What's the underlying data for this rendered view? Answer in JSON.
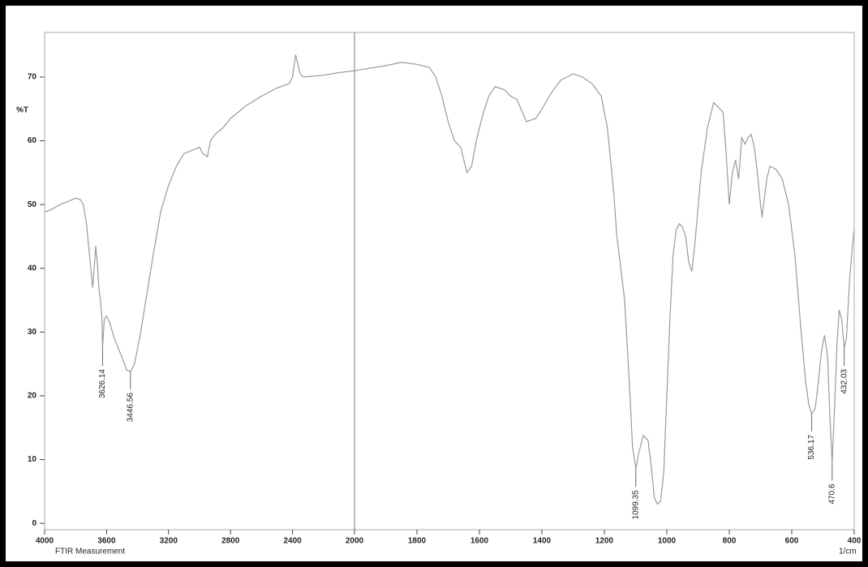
{
  "chart_data": {
    "type": "line",
    "y_label": "%T",
    "x_unit": "1/cm",
    "footer": "FTIR Measurement",
    "xlim": [
      4000,
      400
    ],
    "xticks": [
      4000,
      3600,
      3200,
      2800,
      2400,
      2000,
      1800,
      1600,
      1400,
      1200,
      1000,
      800,
      600,
      400
    ],
    "ylim": [
      -1,
      77
    ],
    "yticks": [
      0,
      10,
      20,
      30,
      40,
      50,
      60,
      70
    ],
    "vline": 2000,
    "color": "#9a9a9a",
    "series": [
      {
        "x": [
          4000,
          3950,
          3900,
          3850,
          3800,
          3770,
          3750,
          3730,
          3710,
          3690,
          3680,
          3670,
          3660,
          3650,
          3640,
          3630,
          3626,
          3615,
          3600,
          3580,
          3550,
          3500,
          3470,
          3446,
          3420,
          3380,
          3340,
          3300,
          3250,
          3200,
          3150,
          3100,
          3050,
          3000,
          2980,
          2950,
          2930,
          2900,
          2850,
          2800,
          2700,
          2600,
          2500,
          2420,
          2400,
          2380,
          2365,
          2350,
          2330,
          2200,
          2100,
          2000,
          1900,
          1850,
          1800,
          1760,
          1740,
          1720,
          1700,
          1680,
          1660,
          1640,
          1625,
          1610,
          1590,
          1570,
          1550,
          1520,
          1500,
          1480,
          1450,
          1420,
          1400,
          1370,
          1340,
          1300,
          1270,
          1240,
          1210,
          1190,
          1170,
          1160,
          1150,
          1135,
          1120,
          1110,
          1099,
          1090,
          1075,
          1060,
          1050,
          1040,
          1030,
          1020,
          1010,
          1000,
          990,
          980,
          970,
          960,
          950,
          940,
          930,
          920,
          910,
          890,
          870,
          850,
          830,
          820,
          810,
          800,
          790,
          780,
          770,
          760,
          750,
          740,
          730,
          720,
          710,
          700,
          695,
          690,
          680,
          670,
          650,
          630,
          610,
          590,
          570,
          555,
          545,
          536,
          525,
          515,
          505,
          495,
          485,
          478,
          470.6,
          463,
          455,
          448,
          440,
          432,
          425,
          415,
          405,
          400
        ],
        "values": [
          48.8,
          49.3,
          50,
          50.5,
          51,
          50.8,
          50,
          47,
          42,
          37,
          40,
          43.5,
          41,
          37,
          35,
          32,
          27.5,
          32,
          32.5,
          31.5,
          29,
          26,
          24,
          23.8,
          25,
          30,
          36,
          42,
          49,
          53,
          56,
          58,
          58.5,
          59,
          58,
          57.5,
          60,
          61,
          62,
          63.5,
          65.5,
          67,
          68.3,
          69,
          70,
          73.5,
          72,
          70.5,
          70,
          70.3,
          70.7,
          71,
          71.8,
          72.3,
          72,
          71.5,
          70,
          67,
          63,
          60,
          59,
          55,
          56,
          60,
          64,
          67,
          68.5,
          68,
          67,
          66.5,
          63,
          63.5,
          65,
          67.5,
          69.5,
          70.5,
          70,
          69,
          67,
          62,
          52,
          45,
          41,
          35,
          22,
          12,
          8.5,
          11,
          13.8,
          13,
          9,
          4,
          3,
          3.5,
          8,
          20,
          32,
          42,
          46,
          47,
          46.5,
          45,
          41,
          39.5,
          44,
          55,
          62,
          66,
          65,
          64.5,
          58,
          50,
          55,
          57,
          54,
          60.5,
          59.5,
          60.5,
          61,
          59,
          55,
          50,
          48,
          50,
          54,
          56,
          55.5,
          54,
          50,
          42,
          30,
          22,
          18.5,
          17.2,
          18,
          22,
          27,
          29.5,
          26,
          17,
          9.5,
          18,
          28,
          33.5,
          32,
          27.5,
          29,
          38,
          44,
          46
        ]
      }
    ],
    "peaks": [
      {
        "x": 3626.14,
        "y": 27.5
      },
      {
        "x": 3446.56,
        "y": 23.8
      },
      {
        "x": 1099.35,
        "y": 8.5
      },
      {
        "x": 536.17,
        "y": 17.2
      },
      {
        "x": 470.6,
        "y": 9.5
      },
      {
        "x": 432.03,
        "y": 27.5
      }
    ]
  }
}
